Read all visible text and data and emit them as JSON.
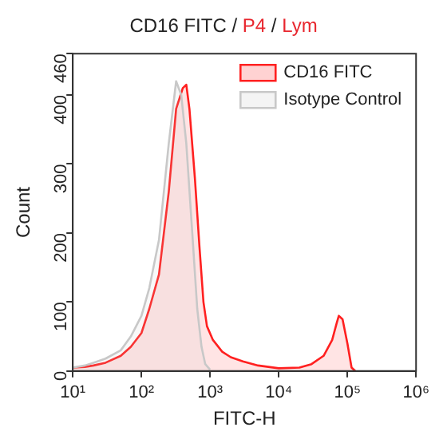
{
  "chart_data": {
    "type": "area",
    "title": "CD16 FITC / P4 / Lym",
    "xlabel": "FITC-H",
    "ylabel": "Count",
    "log": "x",
    "xlim": [
      10,
      1000000
    ],
    "xticks": [
      {
        "value": 10,
        "label": "10¹"
      },
      {
        "value": 100,
        "label": "10²"
      },
      {
        "value": 1000,
        "label": "10³"
      },
      {
        "value": 10000,
        "label": "10⁴"
      },
      {
        "value": 100000,
        "label": "10⁵"
      },
      {
        "value": 1000000,
        "label": "10⁶"
      }
    ],
    "ylim": [
      0,
      460
    ],
    "yticks": [
      0,
      100,
      200,
      300,
      400,
      460
    ],
    "grid": false,
    "legend": "top right",
    "marker": "none",
    "line_style": "solid",
    "series": [
      {
        "name": "CD16 FITC",
        "color": "#ff2020",
        "x": [
          10,
          15,
          20,
          30,
          50,
          70,
          100,
          130,
          180,
          250,
          320,
          400,
          450,
          500,
          600,
          700,
          800,
          900,
          1100,
          1500,
          2000,
          3000,
          5000,
          10000,
          20000,
          30000,
          45000,
          60000,
          70000,
          75000,
          85000,
          100000,
          115000,
          130000
        ],
        "values": [
          5,
          6,
          8,
          12,
          22,
          35,
          55,
          90,
          140,
          260,
          380,
          410,
          415,
          380,
          280,
          180,
          100,
          65,
          45,
          28,
          20,
          14,
          8,
          4,
          5,
          10,
          22,
          45,
          70,
          80,
          75,
          40,
          5,
          0
        ]
      },
      {
        "name": "Isotype Control",
        "color": "#c8c8c8",
        "x": [
          10,
          15,
          20,
          30,
          50,
          70,
          100,
          130,
          180,
          250,
          320,
          380,
          450,
          550,
          650,
          750,
          850,
          1000
        ],
        "values": [
          5,
          8,
          12,
          18,
          30,
          50,
          80,
          120,
          190,
          330,
          420,
          400,
          330,
          200,
          90,
          35,
          10,
          2
        ]
      }
    ]
  }
}
